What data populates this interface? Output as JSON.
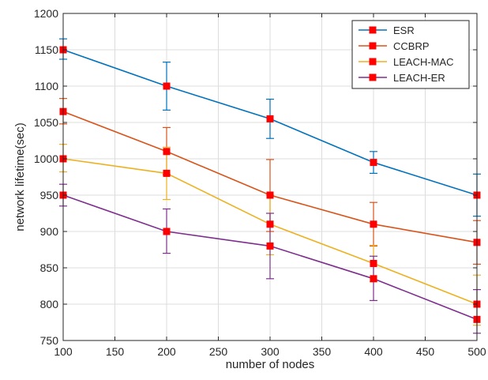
{
  "chart_data": {
    "type": "line",
    "title": "",
    "xlabel": "number of nodes",
    "ylabel": "network lifetime(sec)",
    "xlim": [
      100,
      500
    ],
    "ylim": [
      750,
      1200
    ],
    "xticks": [
      100,
      150,
      200,
      250,
      300,
      350,
      400,
      450,
      500
    ],
    "yticks": [
      750,
      800,
      850,
      900,
      950,
      1000,
      1050,
      1100,
      1150,
      1200
    ],
    "grid": true,
    "legend_position": "top-right",
    "x": [
      100,
      200,
      300,
      400,
      500
    ],
    "series": [
      {
        "name": "ESR",
        "color": "#0072BD",
        "values": [
          1150,
          1100,
          1055,
          995,
          950
        ],
        "err_low": [
          1137,
          1067,
          1028,
          980,
          921
        ],
        "err_high": [
          1165,
          1133,
          1082,
          1010,
          979
        ]
      },
      {
        "name": "CCBRP",
        "color": "#D95319",
        "values": [
          1065,
          1010,
          950,
          910,
          885
        ],
        "err_low": [
          1048,
          978,
          900,
          880,
          855
        ],
        "err_high": [
          1083,
          1043,
          999,
          940,
          915
        ]
      },
      {
        "name": "LEACH-MAC",
        "color": "#EDB120",
        "values": [
          1000,
          980,
          910,
          856,
          800
        ],
        "err_low": [
          982,
          944,
          868,
          831,
          771
        ],
        "err_high": [
          1020,
          1016,
          950,
          881,
          840
        ]
      },
      {
        "name": "LEACH-ER",
        "color": "#7E2F8E",
        "values": [
          950,
          900,
          880,
          835,
          779
        ],
        "err_low": [
          935,
          870,
          835,
          805,
          760
        ],
        "err_high": [
          965,
          931,
          925,
          866,
          820
        ]
      }
    ],
    "marker_color": "#FF0000"
  }
}
